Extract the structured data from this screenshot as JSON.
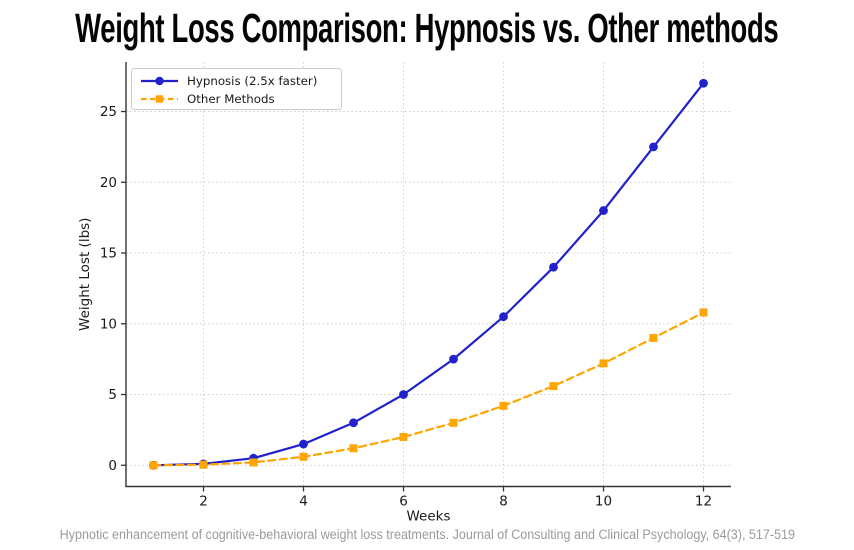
{
  "page": {
    "title": "Weight Loss Comparison: Hypnosis vs. Other methods",
    "footer": "Hypnotic enhancement of cognitive-behavioral weight loss treatments. Journal of Consulting and Clinical Psychology, 64(3), 517-519"
  },
  "colors": {
    "background": "#ffffff",
    "title_text": "#050505",
    "footer_text": "#9b9b9b",
    "grid": "#cfcfcf",
    "spine": "#333333",
    "tick_text": "#1a1a1a",
    "legend_border": "#cccccc",
    "legend_background": "#ffffff",
    "hypnosis_blue": "#2222CC",
    "other_orange": "#FFA500"
  },
  "chart_data": {
    "type": "line",
    "title": "Weight Loss Comparison: Hypnosis vs. Other methods",
    "xlabel": "Weeks",
    "ylabel": "Weight Lost (lbs)",
    "x": [
      1,
      2,
      3,
      4,
      5,
      6,
      7,
      8,
      9,
      10,
      11,
      12
    ],
    "series": [
      {
        "id": "hypnosis",
        "name": "Hypnosis (2.5x faster)",
        "color": "#2222CC",
        "line_style": "solid",
        "marker": "circle",
        "values": [
          0,
          0.1,
          0.5,
          1.5,
          3,
          5,
          7.5,
          10.5,
          14,
          18,
          22.5,
          27
        ]
      },
      {
        "id": "other-methods",
        "name": "Other Methods",
        "color": "#FFA500",
        "line_style": "dashed",
        "marker": "square",
        "values": [
          0,
          0.04,
          0.2,
          0.6,
          1.2,
          2,
          3,
          4.2,
          5.6,
          7.2,
          9,
          10.8
        ]
      }
    ],
    "xticks": [
      2,
      4,
      6,
      8,
      10,
      12
    ],
    "yticks": [
      0,
      5,
      10,
      15,
      20,
      25
    ],
    "xlim": [
      0.45,
      12.55
    ],
    "ylim": [
      -1.5,
      28.5
    ],
    "grid": true,
    "grid_style": "dotted",
    "legend_position": "upper-left"
  }
}
